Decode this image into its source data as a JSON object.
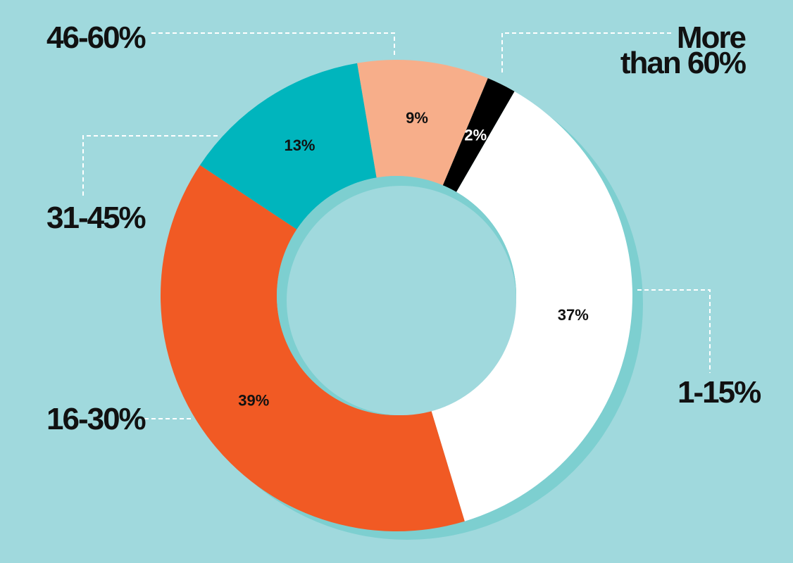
{
  "chart_data": {
    "type": "donut",
    "categories": [
      "1-15%",
      "16-30%",
      "31-45%",
      "46-60%",
      "More than 60%"
    ],
    "values": [
      37,
      39,
      13,
      9,
      2
    ],
    "value_labels": [
      "37%",
      "39%",
      "13%",
      "9%",
      "2%"
    ],
    "colors": [
      "#ffffff",
      "#f15a24",
      "#00b5bd",
      "#f7ae8a",
      "#000000"
    ]
  }
}
